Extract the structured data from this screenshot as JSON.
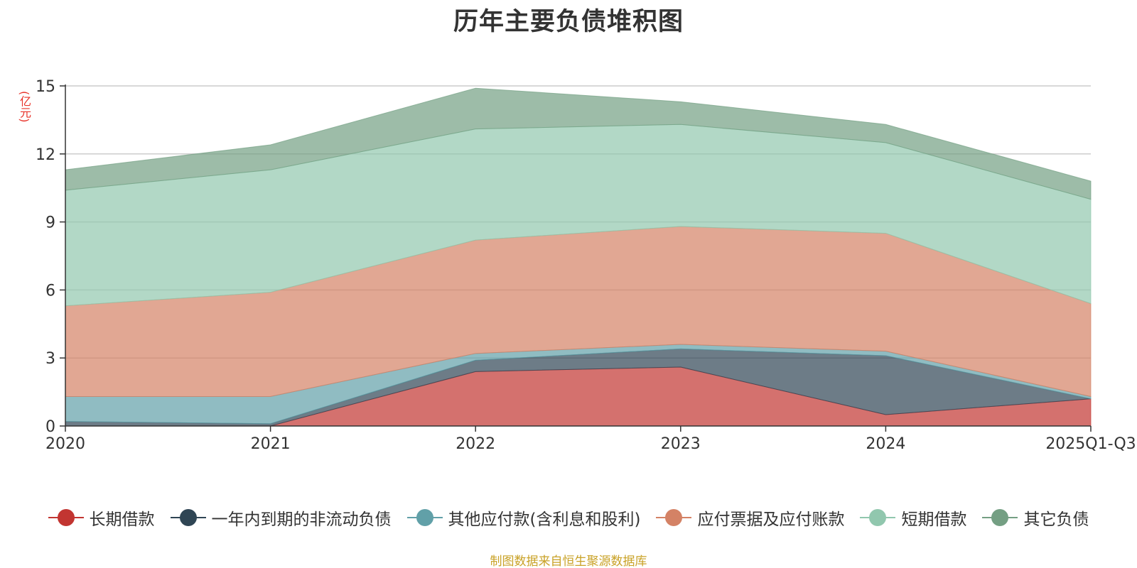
{
  "chart_data": {
    "type": "area",
    "stacked": true,
    "title": "历年主要负债堆积图",
    "ylabel": "(亿元)",
    "xlabel": "",
    "categories": [
      "2020",
      "2021",
      "2022",
      "2023",
      "2024",
      "2025Q1-Q3"
    ],
    "ylim": [
      0,
      15
    ],
    "yticks": [
      0,
      3,
      6,
      9,
      12,
      15
    ],
    "grid": true,
    "legend_position": "bottom",
    "series": [
      {
        "name": "长期借款",
        "color": "#c23531",
        "values": [
          0.0,
          0.0,
          2.4,
          2.6,
          0.5,
          1.2
        ]
      },
      {
        "name": "一年内到期的非流动负债",
        "color": "#2f4554",
        "values": [
          0.2,
          0.1,
          0.5,
          0.8,
          2.6,
          0.0
        ]
      },
      {
        "name": "其他应付款(含利息和股利)",
        "color": "#61a0a8",
        "values": [
          1.1,
          1.2,
          0.3,
          0.2,
          0.2,
          0.1
        ]
      },
      {
        "name": "应付票据及应付账款",
        "color": "#d48265",
        "values": [
          4.0,
          4.6,
          5.0,
          5.2,
          5.2,
          4.1
        ]
      },
      {
        "name": "短期借款",
        "color": "#91c7ae",
        "values": [
          5.1,
          5.4,
          4.9,
          4.5,
          4.0,
          4.6
        ]
      },
      {
        "name": "其它负债",
        "color": "#749f83",
        "values": [
          0.9,
          1.1,
          1.8,
          1.0,
          0.8,
          0.8
        ]
      }
    ]
  },
  "source_text": "制图数据来自恒生聚源数据库"
}
